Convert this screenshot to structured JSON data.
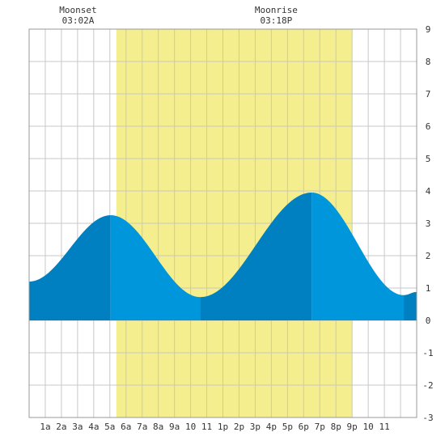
{
  "chart_data": {
    "type": "area",
    "title": "",
    "xlabel": "",
    "ylabel": "",
    "xlim": [
      0,
      24
    ],
    "ylim": [
      -3,
      9
    ],
    "grid": true,
    "x_tick_labels": [
      "1a",
      "2a",
      "3a",
      "4a",
      "5a",
      "6a",
      "7a",
      "8a",
      "9a",
      "10",
      "11",
      "1p",
      "2p",
      "3p",
      "4p",
      "5p",
      "6p",
      "7p",
      "8p",
      "9p",
      "10",
      "11"
    ],
    "y_ticks": [
      -3,
      -2,
      -1,
      0,
      1,
      2,
      3,
      4,
      5,
      6,
      7,
      8,
      9
    ],
    "y_tick_labels": [
      "-3",
      "-2",
      "-1",
      "0",
      "1",
      "2",
      "3",
      "4",
      "5",
      "6",
      "7",
      "8",
      "9"
    ],
    "daylight": {
      "start_hour": 5.4,
      "end_hour": 20.0,
      "color": "#f4ee8e"
    },
    "extremes": [
      {
        "hour": 0.0,
        "value": 1.2,
        "kind": "start"
      },
      {
        "hour": 5.05,
        "value": 3.25,
        "kind": "high"
      },
      {
        "hour": 10.6,
        "value": 0.72,
        "kind": "low"
      },
      {
        "hour": 17.5,
        "value": 3.95,
        "kind": "high"
      },
      {
        "hour": 23.2,
        "value": 0.78,
        "kind": "low"
      },
      {
        "hour": 24.0,
        "value": 0.88,
        "kind": "end"
      }
    ],
    "colors": {
      "water_light": "#0096dc",
      "water_dark": "#0080c0",
      "grid": "#c8c8c8",
      "border": "#999999"
    },
    "annotations": [
      {
        "label": "Moonset",
        "time": "03:02A",
        "hour": 3.03
      },
      {
        "label": "Moonrise",
        "time": "03:18P",
        "hour": 15.3
      }
    ]
  }
}
